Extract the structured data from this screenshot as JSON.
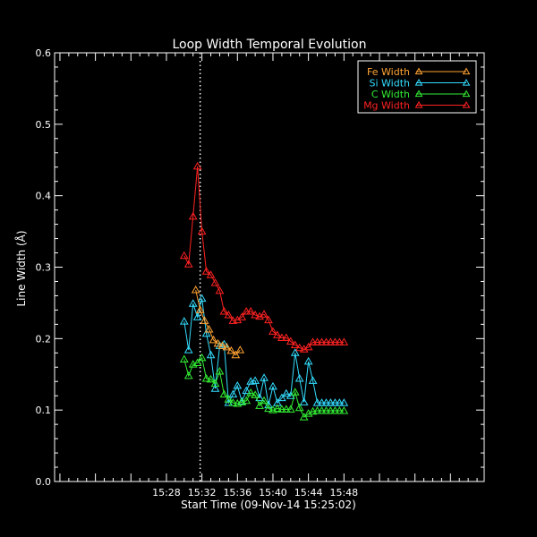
{
  "chart_data": {
    "type": "line",
    "title": "Loop Width Temporal Evolution",
    "xlabel": "Start Time (09-Nov-14 15:25:02)",
    "ylabel": "Line Width (Å)",
    "xlim": [
      15.4,
      63.8
    ],
    "ylim": [
      0.0,
      0.6
    ],
    "x_ticks": [
      {
        "value": 28,
        "label": "15:28"
      },
      {
        "value": 32,
        "label": "15:32"
      },
      {
        "value": 36,
        "label": "15:36"
      },
      {
        "value": 40,
        "label": "15:40"
      },
      {
        "value": 44,
        "label": "15:44"
      },
      {
        "value": 48,
        "label": "15:48"
      }
    ],
    "y_ticks": [
      {
        "value": 0.0,
        "label": "0.0"
      },
      {
        "value": 0.1,
        "label": "0.1"
      },
      {
        "value": 0.2,
        "label": "0.2"
      },
      {
        "value": 0.3,
        "label": "0.3"
      },
      {
        "value": 0.4,
        "label": "0.4"
      },
      {
        "value": 0.5,
        "label": "0.5"
      },
      {
        "value": 0.6,
        "label": "0.6"
      }
    ],
    "vline_x": 31.8,
    "legend_position": "top-right",
    "series": [
      {
        "name": "Fe Width",
        "color": "#ffa333",
        "x": [
          31.3,
          31.8,
          32.3,
          32.8,
          33.3,
          33.8,
          34.3,
          34.8,
          35.3,
          35.8,
          36.3
        ],
        "values": [
          0.268,
          0.24,
          0.225,
          0.213,
          0.198,
          0.193,
          0.19,
          0.188,
          0.183,
          0.177,
          0.184
        ]
      },
      {
        "name": "Si Width",
        "color": "#33ddff",
        "x": [
          30.0,
          30.5,
          31.0,
          31.5,
          32.0,
          32.5,
          33.0,
          33.5,
          34.0,
          34.5,
          35.0,
          35.5,
          36.0,
          36.5,
          37.0,
          37.5,
          38.0,
          38.5,
          39.0,
          39.5,
          40.0,
          40.5,
          41.0,
          41.5,
          42.0,
          42.5,
          43.0,
          43.5,
          44.0,
          44.5,
          45.0,
          45.5,
          46.0,
          46.5,
          47.0,
          47.5,
          48.0
        ],
        "values": [
          0.224,
          0.184,
          0.249,
          0.23,
          0.256,
          0.207,
          0.177,
          0.13,
          0.19,
          0.192,
          0.11,
          0.122,
          0.134,
          0.112,
          0.127,
          0.14,
          0.141,
          0.117,
          0.145,
          0.107,
          0.133,
          0.11,
          0.117,
          0.123,
          0.12,
          0.18,
          0.144,
          0.111,
          0.168,
          0.141,
          0.11,
          0.11,
          0.11,
          0.11,
          0.11,
          0.11,
          0.11
        ]
      },
      {
        "name": "C Width",
        "color": "#33ee33",
        "x": [
          30.0,
          30.5,
          31.0,
          31.5,
          32.0,
          32.5,
          33.0,
          33.5,
          34.0,
          34.5,
          35.0,
          35.5,
          36.0,
          36.5,
          37.0,
          37.5,
          38.0,
          38.5,
          39.0,
          39.5,
          40.0,
          40.5,
          41.0,
          41.5,
          42.0,
          42.5,
          43.0,
          43.5,
          44.0,
          44.5,
          45.0,
          45.5,
          46.0,
          46.5,
          47.0,
          47.5,
          48.0
        ],
        "values": [
          0.171,
          0.148,
          0.164,
          0.166,
          0.173,
          0.144,
          0.143,
          0.137,
          0.154,
          0.122,
          0.115,
          0.11,
          0.109,
          0.111,
          0.113,
          0.124,
          0.121,
          0.106,
          0.113,
          0.102,
          0.1,
          0.102,
          0.101,
          0.101,
          0.101,
          0.125,
          0.103,
          0.09,
          0.095,
          0.098,
          0.099,
          0.099,
          0.099,
          0.099,
          0.099,
          0.099,
          0.099
        ]
      },
      {
        "name": "Mg Width",
        "color": "#ff2222",
        "x": [
          30.0,
          30.5,
          31.0,
          31.5,
          32.0,
          32.5,
          33.0,
          33.5,
          34.0,
          34.5,
          35.0,
          35.5,
          36.0,
          36.5,
          37.0,
          37.5,
          38.0,
          38.5,
          39.0,
          39.5,
          40.0,
          40.5,
          41.0,
          41.5,
          42.0,
          42.5,
          43.0,
          43.5,
          44.0,
          44.5,
          45.0,
          45.5,
          46.0,
          46.5,
          47.0,
          47.5,
          48.0
        ],
        "values": [
          0.316,
          0.304,
          0.371,
          0.441,
          0.35,
          0.294,
          0.289,
          0.278,
          0.267,
          0.238,
          0.233,
          0.225,
          0.226,
          0.23,
          0.238,
          0.238,
          0.233,
          0.231,
          0.234,
          0.226,
          0.21,
          0.205,
          0.201,
          0.201,
          0.196,
          0.191,
          0.187,
          0.185,
          0.188,
          0.195,
          0.195,
          0.195,
          0.195,
          0.195,
          0.195,
          0.195,
          0.195
        ]
      }
    ]
  }
}
